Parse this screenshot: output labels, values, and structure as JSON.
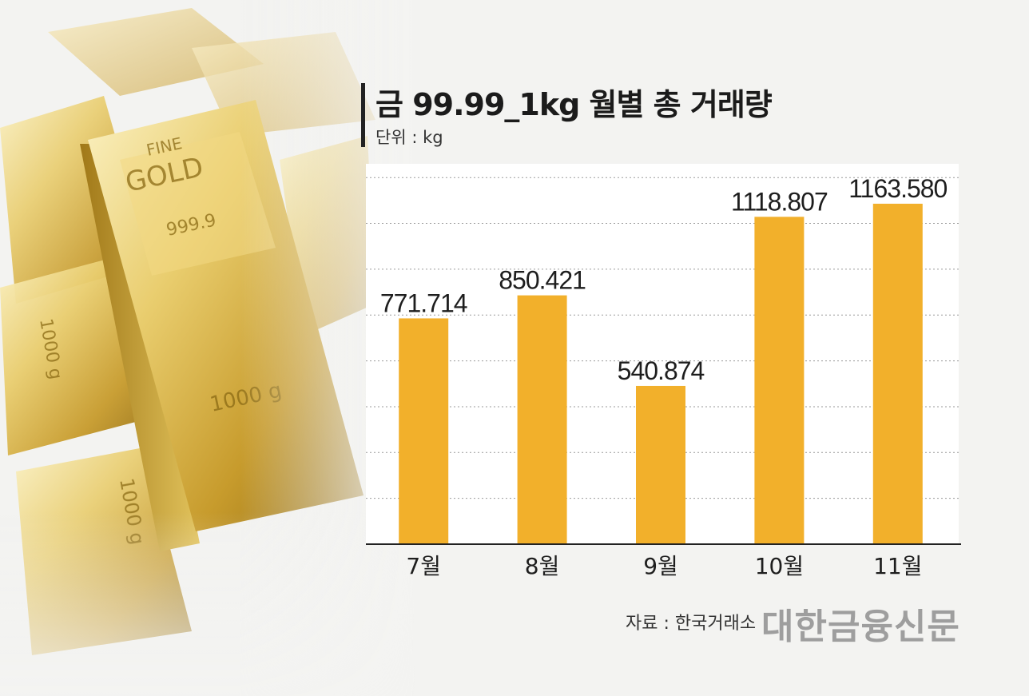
{
  "header": {
    "title": "금 99.99_1kg 월별 총 거래량",
    "unit": "단위 : kg"
  },
  "footer": {
    "source": "자료 : 한국거래소",
    "brand": "대한금융신문"
  },
  "bars_text": {
    "bar1": "1000 g",
    "fine": "FINE",
    "gold": "GOLD",
    "purity": "999.9"
  },
  "colors": {
    "bar": "#f2b02b",
    "grid": "#9a9a9a",
    "chart_bg": "#ffffff",
    "gold_light": "#f6e7a8",
    "gold_mid": "#d9b64a",
    "gold_dark": "#a97f16"
  },
  "chart_data": {
    "type": "bar",
    "title": "금 99.99_1kg 월별 총 거래량",
    "unit": "kg",
    "categories": [
      "7월",
      "8월",
      "9월",
      "10월",
      "11월"
    ],
    "values": [
      771.714,
      850.421,
      540.874,
      1118.807,
      1163.58
    ],
    "value_labels": [
      "771.714",
      "850.421",
      "540.874",
      "1118.807",
      "1163.580"
    ],
    "ylim": [
      0,
      1300
    ],
    "grid": true,
    "legend": "none"
  }
}
